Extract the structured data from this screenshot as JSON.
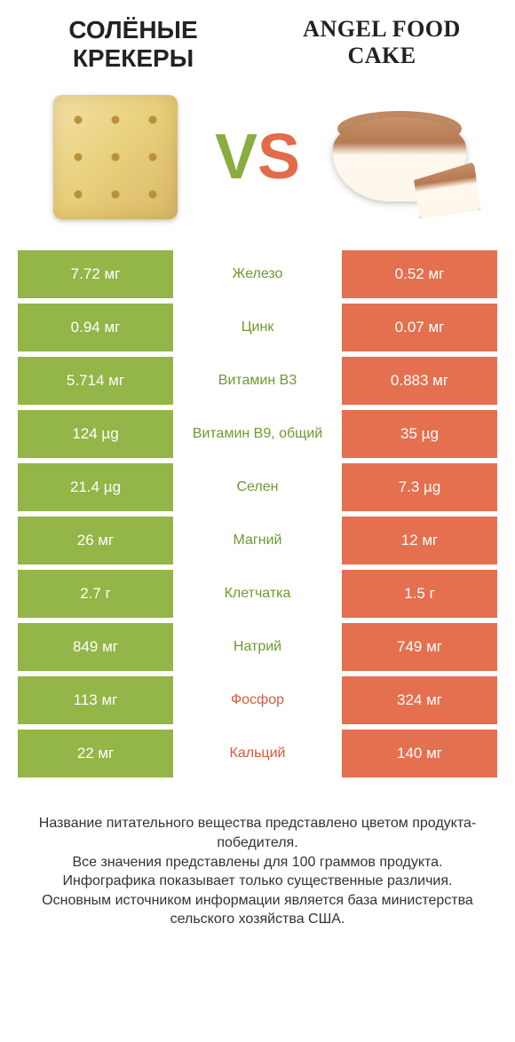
{
  "colors": {
    "green": "#94b547",
    "orange": "#e4704f",
    "label_green": "#6f9a2d",
    "label_orange": "#d85a3a",
    "background": "#ffffff"
  },
  "left_product": "СОЛЁНЫЕ КРЕКЕРЫ",
  "right_product": "ANGEL FOOD CAKE",
  "vs_text": {
    "v": "V",
    "s": "S"
  },
  "rows": [
    {
      "left": "7.72 мг",
      "label": "Железо",
      "right": "0.52 мг",
      "winner": "left"
    },
    {
      "left": "0.94 мг",
      "label": "Цинк",
      "right": "0.07 мг",
      "winner": "left"
    },
    {
      "left": "5.714 мг",
      "label": "Витамин B3",
      "right": "0.883 мг",
      "winner": "left"
    },
    {
      "left": "124 µg",
      "label": "Витамин B9, общий",
      "right": "35 µg",
      "winner": "left"
    },
    {
      "left": "21.4 µg",
      "label": "Селен",
      "right": "7.3 µg",
      "winner": "left"
    },
    {
      "left": "26 мг",
      "label": "Магний",
      "right": "12 мг",
      "winner": "left"
    },
    {
      "left": "2.7 г",
      "label": "Клетчатка",
      "right": "1.5 г",
      "winner": "left"
    },
    {
      "left": "849 мг",
      "label": "Натрий",
      "right": "749 мг",
      "winner": "left"
    },
    {
      "left": "113 мг",
      "label": "Фосфор",
      "right": "324 мг",
      "winner": "right"
    },
    {
      "left": "22 мг",
      "label": "Кальций",
      "right": "140 мг",
      "winner": "right"
    }
  ],
  "footer_lines": [
    "Название питательного вещества представлено цветом продукта-победителя.",
    "Все значения представлены для 100 граммов продукта.",
    "Инфографика показывает только существенные различия.",
    "Основным источником информации является база министерства сельского хозяйства США."
  ]
}
